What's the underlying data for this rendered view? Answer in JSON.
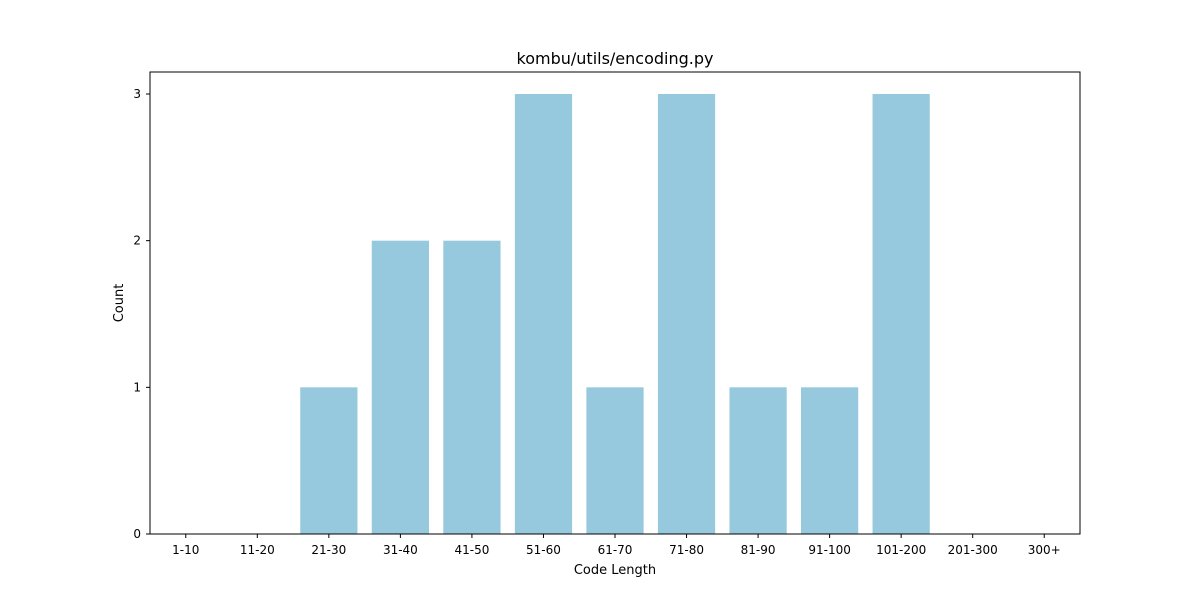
{
  "chart_data": {
    "type": "bar",
    "title": "kombu/utils/encoding.py",
    "xlabel": "Code Length",
    "ylabel": "Count",
    "categories": [
      "1-10",
      "11-20",
      "21-30",
      "31-40",
      "41-50",
      "51-60",
      "61-70",
      "71-80",
      "81-90",
      "91-100",
      "101-200",
      "201-300",
      "300+"
    ],
    "values": [
      0,
      0,
      1,
      2,
      2,
      3,
      1,
      3,
      1,
      1,
      3,
      0,
      0
    ],
    "yticks": [
      0,
      1,
      2,
      3
    ],
    "ylim": [
      0,
      3.15
    ],
    "grid": false,
    "legend": "none",
    "bar_color": "#96c9dd"
  }
}
